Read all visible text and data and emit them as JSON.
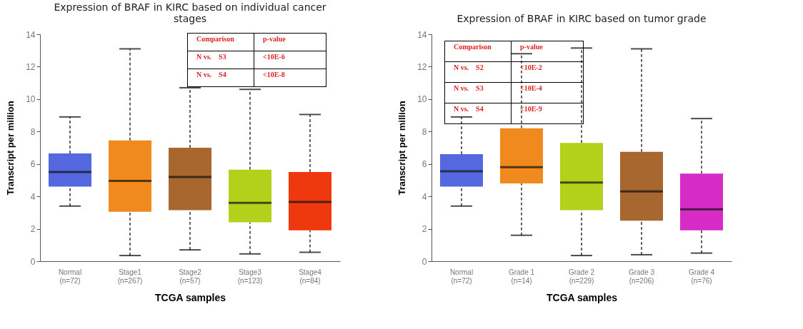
{
  "chart_data": [
    {
      "type": "box",
      "title": [
        "Expression of BRAF in KIRC based on individual cancer",
        "stages"
      ],
      "xlabel": "TCGA samples",
      "ylabel": "Transcript per million",
      "categories": [
        "Normal\n(n=72)",
        "Stage1\n(n=267)",
        "Stage2\n(n=57)",
        "Stage3\n(n=123)",
        "Stage4\n(n=84)"
      ],
      "colors": [
        "#5668e0",
        "#f08a1e",
        "#a8672e",
        "#b3d11a",
        "#f0380e"
      ],
      "boxes": [
        {
          "low": 3.4,
          "q1": 4.6,
          "median": 5.5,
          "q3": 6.65,
          "high": 8.9
        },
        {
          "low": 0.35,
          "q1": 3.05,
          "median": 4.95,
          "q3": 7.45,
          "high": 13.1
        },
        {
          "low": 0.7,
          "q1": 3.15,
          "median": 5.2,
          "q3": 7.0,
          "high": 10.7
        },
        {
          "low": 0.45,
          "q1": 2.4,
          "median": 3.6,
          "q3": 5.65,
          "high": 10.6
        },
        {
          "low": 0.55,
          "q1": 1.9,
          "median": 3.65,
          "q3": 5.5,
          "high": 9.05
        }
      ],
      "ylim": [
        0,
        14
      ],
      "yticks": [
        0,
        2,
        4,
        6,
        8,
        10,
        12,
        14
      ],
      "grid": false,
      "line_style": "dashed",
      "annotations": [
        "Comparison",
        "p-value",
        "N vs.    S3",
        "<10E-6",
        "N vs.    S4",
        "<10E-8"
      ]
    },
    {
      "type": "box",
      "title": "Expression of BRAF in KIRC based on tumor grade",
      "xlabel": "TCGA samples",
      "ylabel": "Transcript per million",
      "categories": [
        "Normal\n(n=72)",
        "Grade 1\n(n=14)",
        "Grade 2\n(n=229)",
        "Grade 3\n(n=206)",
        "Grade 4\n(n=76)"
      ],
      "colors": [
        "#5668e0",
        "#f08a1e",
        "#b3d11a",
        "#a8672e",
        "#d62bc4"
      ],
      "boxes": [
        {
          "low": 3.4,
          "q1": 4.6,
          "median": 5.55,
          "q3": 6.6,
          "high": 8.9
        },
        {
          "low": 1.6,
          "q1": 4.8,
          "median": 5.8,
          "q3": 8.2,
          "high": 12.8
        },
        {
          "low": 0.35,
          "q1": 3.15,
          "median": 4.85,
          "q3": 7.3,
          "high": 13.15
        },
        {
          "low": 0.4,
          "q1": 2.5,
          "median": 4.3,
          "q3": 6.75,
          "high": 13.1
        },
        {
          "low": 0.5,
          "q1": 1.9,
          "median": 3.2,
          "q3": 5.4,
          "high": 8.8
        }
      ],
      "ylim": [
        0,
        14
      ],
      "yticks": [
        0,
        2,
        4,
        6,
        8,
        10,
        12,
        14
      ],
      "grid": false,
      "line_style": "dashed",
      "annotations": [
        "Comparison",
        "p-value",
        "N vs.    S2",
        "<10E-2",
        "N vs.    S3",
        "<10E-4",
        "N vs.    S4",
        "<10E-9"
      ]
    }
  ]
}
